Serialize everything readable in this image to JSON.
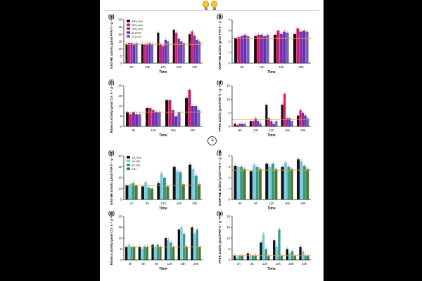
{
  "figure": {
    "icons": [
      "lightbulb-icon",
      "lightbulb-icon",
      "clock-icon"
    ]
  },
  "chart_data": [
    {
      "panel": "(a)",
      "type": "bar",
      "ylabel": "NAD-ME activity (μmol PYR h⁻¹ g⁻¹FW)",
      "xlabel": "Time",
      "categories": [
        "8h",
        "10h",
        "12h",
        "16h",
        "20h"
      ],
      "yticks": [
        0,
        5,
        10,
        15,
        20,
        25,
        30
      ],
      "ylim": [
        0,
        30
      ],
      "ref_line": 13,
      "legend": [
        "300 μmol",
        "200 μmol",
        "100 μmol",
        "50 μmol",
        "10 μmol"
      ],
      "colors": [
        "#111111",
        "#d81b60",
        "#8e24aa",
        "#5e35b1",
        "#7e57c2"
      ],
      "series": [
        {
          "name": "300 μmol",
          "values": [
            13,
            13,
            21,
            23,
            20
          ]
        },
        {
          "name": "200 μmol",
          "values": [
            14,
            13,
            13,
            21,
            22
          ]
        },
        {
          "name": "100 μmol",
          "values": [
            14,
            13,
            12,
            17,
            19
          ]
        },
        {
          "name": "50 μmol",
          "values": [
            13,
            14,
            16,
            15,
            16
          ]
        },
        {
          "name": "10 μmol",
          "values": [
            14,
            13,
            15,
            14,
            15
          ]
        }
      ]
    },
    {
      "panel": "(b)",
      "type": "bar",
      "ylabel": "NADP-ME activity (μmol PYR h⁻¹ g⁻¹FW)",
      "xlabel": "Time",
      "categories": [
        "8h",
        "12h",
        "16h",
        "20h"
      ],
      "yticks": [
        0,
        1,
        2,
        3,
        4
      ],
      "ylim": [
        0,
        4
      ],
      "ref_line": 2.3,
      "colors": [
        "#111111",
        "#d81b60",
        "#8e24aa",
        "#5e35b1",
        "#7e57c2"
      ],
      "series": [
        {
          "name": "300 μmol",
          "values": [
            2.3,
            2.5,
            2.6,
            2.7
          ]
        },
        {
          "name": "200 μmol",
          "values": [
            2.4,
            2.6,
            3.0,
            3.2
          ]
        },
        {
          "name": "100 μmol",
          "values": [
            2.5,
            2.6,
            2.7,
            2.9
          ]
        },
        {
          "name": "50 μmol",
          "values": [
            2.6,
            2.5,
            2.9,
            3.0
          ]
        },
        {
          "name": "10 μmol",
          "values": [
            2.5,
            2.6,
            2.8,
            2.9
          ]
        }
      ]
    },
    {
      "panel": "(c)",
      "type": "bar",
      "ylabel": "Rubisco activity (μmol CO₂ h⁻¹ g⁻¹FW)",
      "xlabel": "Time",
      "categories": [
        "8h",
        "12h",
        "16h",
        "20h"
      ],
      "yticks": [
        0,
        5,
        10,
        15,
        20
      ],
      "ylim": [
        0,
        20
      ],
      "ref_line": 7,
      "colors": [
        "#111111",
        "#d81b60",
        "#8e24aa",
        "#5e35b1",
        "#7e57c2"
      ],
      "series": [
        {
          "name": "300 μmol",
          "values": [
            7,
            9,
            13,
            14
          ]
        },
        {
          "name": "200 μmol",
          "values": [
            6,
            9,
            13,
            18
          ]
        },
        {
          "name": "100 μmol",
          "values": [
            7,
            8,
            8,
            10
          ]
        },
        {
          "name": "50 μmol",
          "values": [
            6,
            7,
            5,
            10
          ]
        },
        {
          "name": "10 μmol",
          "values": [
            6,
            7,
            7,
            8
          ]
        }
      ]
    },
    {
      "panel": "(d)",
      "type": "bar",
      "ylabel": "PPDK activity (μmol PEP h⁻¹ g⁻¹FW)",
      "xlabel": "Time",
      "categories": [
        "8h",
        "10h",
        "12h",
        "16h",
        "20h"
      ],
      "yticks": [
        0,
        5,
        10,
        15
      ],
      "ylim": [
        0,
        15
      ],
      "ref_line": 2.5,
      "colors": [
        "#111111",
        "#d81b60",
        "#8e24aa",
        "#5e35b1",
        "#7e57c2"
      ],
      "series": [
        {
          "name": "300 μmol",
          "values": [
            1,
            2,
            8,
            8,
            4
          ]
        },
        {
          "name": "200 μmol",
          "values": [
            0.5,
            2,
            3,
            12,
            6
          ]
        },
        {
          "name": "100 μmol",
          "values": [
            1,
            3,
            2,
            3,
            5
          ]
        },
        {
          "name": "50 μmol",
          "values": [
            1,
            2,
            1,
            3,
            4
          ]
        },
        {
          "name": "10 μmol",
          "values": [
            1,
            1,
            2,
            2,
            3
          ]
        }
      ]
    },
    {
      "panel": "(e)",
      "type": "bar",
      "ylabel": "NAD-ME activity (μmol PYR h⁻¹ g⁻¹FW)",
      "xlabel": "Time",
      "categories": [
        "4h",
        "8h",
        "12h",
        "16h",
        "20h"
      ],
      "yticks": [
        0,
        10,
        20,
        30,
        40
      ],
      "ylim": [
        0,
        40
      ],
      "ref_line": 13,
      "legend": [
        "12L/12D",
        "14L/8D",
        "8L/16D",
        "24D"
      ],
      "colors": [
        "#111111",
        "#7ec8e3",
        "#2e9d8f",
        "#4a7c2a"
      ],
      "series": [
        {
          "name": "12L/12D",
          "values": [
            13,
            12,
            15,
            30,
            32
          ]
        },
        {
          "name": "14L/8D",
          "values": [
            14,
            16,
            24,
            26,
            28
          ]
        },
        {
          "name": "8L/16D",
          "values": [
            15,
            11,
            20,
            25,
            22
          ]
        },
        {
          "name": "24D",
          "values": [
            13,
            10,
            12,
            14,
            14
          ]
        }
      ]
    },
    {
      "panel": "(f)",
      "type": "bar",
      "ylabel": "NADP-ME activity (μmol PYR h⁻¹ g⁻¹FW)",
      "xlabel": "Time",
      "categories": [
        "4h",
        "8h",
        "12h",
        "16h",
        "20h"
      ],
      "yticks": [
        0,
        1,
        2,
        3,
        4
      ],
      "ylim": [
        0,
        4
      ],
      "ref_line": 2.7,
      "colors": [
        "#111111",
        "#7ec8e3",
        "#2e9d8f",
        "#4a7c2a"
      ],
      "series": [
        {
          "name": "12L/12D",
          "values": [
            3.1,
            2.6,
            3.3,
            3.0,
            3.7
          ]
        },
        {
          "name": "14L/8D",
          "values": [
            3.0,
            3.2,
            3.0,
            3.4,
            3.5
          ]
        },
        {
          "name": "8L/16D",
          "values": [
            3.0,
            3.0,
            3.3,
            3.0,
            3.1
          ]
        },
        {
          "name": "24D",
          "values": [
            2.8,
            2.8,
            2.8,
            2.8,
            2.8
          ]
        }
      ]
    },
    {
      "panel": "(g)",
      "type": "bar",
      "ylabel": "Rubisco activity (μmol CO₂ h⁻¹ g⁻¹FW)",
      "xlabel": "Time",
      "categories": [
        "4h",
        "8h",
        "8h",
        "12h",
        "16h",
        "20h"
      ],
      "yticks": [
        0,
        5,
        10,
        15,
        20
      ],
      "ylim": [
        0,
        20
      ],
      "ref_line": 6,
      "colors": [
        "#111111",
        "#7ec8e3",
        "#2e9d8f",
        "#4a7c2a"
      ],
      "series": [
        {
          "name": "12L/12D",
          "values": [
            6,
            6,
            7,
            10,
            14,
            15
          ]
        },
        {
          "name": "14L/8D",
          "values": [
            7,
            5,
            6,
            9,
            15,
            12
          ]
        },
        {
          "name": "8L/16D",
          "values": [
            6,
            6,
            7,
            8,
            12,
            14
          ]
        },
        {
          "name": "24D",
          "values": [
            6,
            6,
            6,
            6,
            6,
            6
          ]
        }
      ]
    },
    {
      "panel": "(h)",
      "type": "bar",
      "ylabel": "PPDK activity (μmol PEP h⁻¹ g⁻¹FW)",
      "xlabel": "Time",
      "categories": [
        "4h",
        "8h",
        "12h",
        "16h",
        "20h",
        "24h"
      ],
      "yticks": [
        0,
        5,
        10,
        15,
        20
      ],
      "ylim": [
        0,
        20
      ],
      "ref_line": 2,
      "colors": [
        "#111111",
        "#7ec8e3",
        "#2e9d8f",
        "#4a7c2a"
      ],
      "series": [
        {
          "name": "12L/12D",
          "values": [
            2,
            3,
            8,
            9,
            5,
            6
          ]
        },
        {
          "name": "14L/8D",
          "values": [
            1,
            2,
            12,
            6,
            3,
            4
          ]
        },
        {
          "name": "8L/16D",
          "values": [
            2,
            2,
            5,
            14,
            4,
            2
          ]
        },
        {
          "name": "24D",
          "values": [
            2,
            2,
            2,
            2,
            2,
            2
          ]
        }
      ]
    }
  ]
}
